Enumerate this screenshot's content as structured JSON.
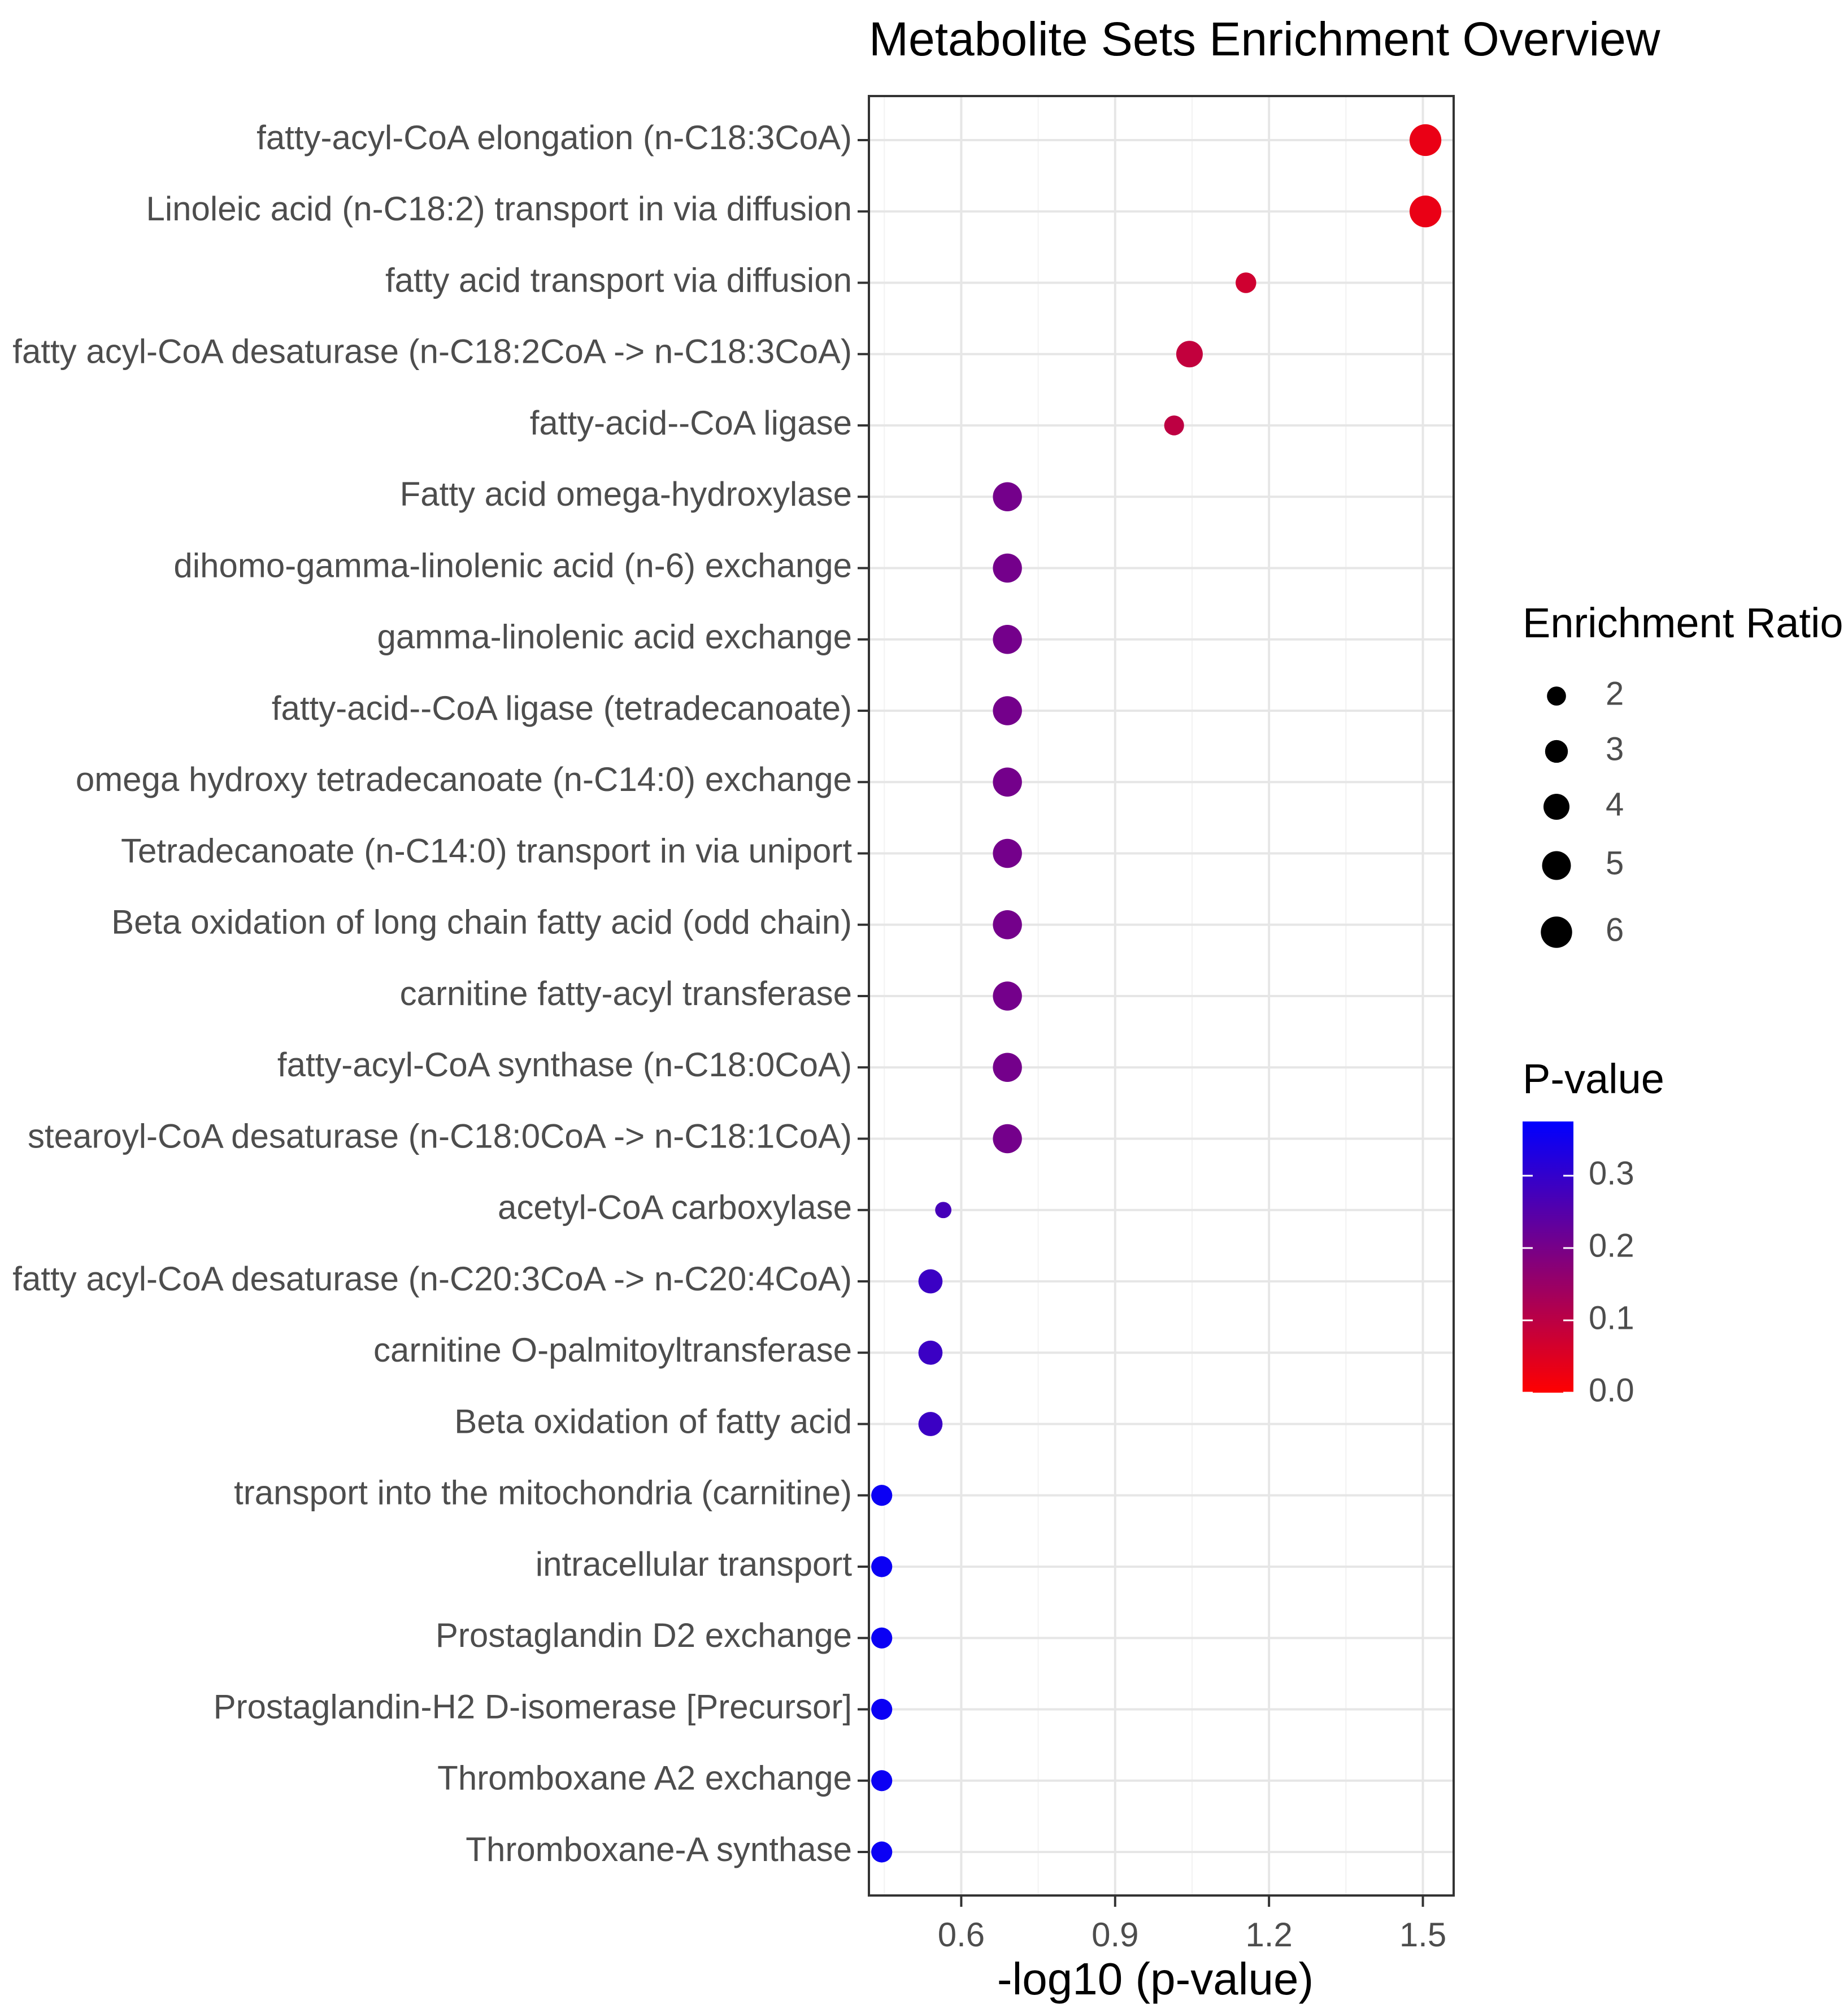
{
  "chart_data": {
    "type": "scatter",
    "title": "Metabolite Sets Enrichment Overview",
    "xlabel": "-log10 (p-value)",
    "ylabel": "",
    "xlim": [
      0.42,
      1.56
    ],
    "xticks": [
      0.6,
      0.9,
      1.2,
      1.5
    ],
    "xtick_labels": [
      "0.6",
      "0.9",
      "1.2",
      "1.5"
    ],
    "grid": true,
    "legend_position": "right",
    "points": [
      {
        "name": "fatty-acyl-CoA elongation (n-C18:3CoA)",
        "neg_log10_p": 1.505,
        "p_value": 0.031,
        "enrichment_ratio": 6.2
      },
      {
        "name": "Linoleic acid (n-C18:2) transport in via diffusion",
        "neg_log10_p": 1.505,
        "p_value": 0.031,
        "enrichment_ratio": 6.2
      },
      {
        "name": "fatty acid transport via diffusion",
        "neg_log10_p": 1.155,
        "p_value": 0.07,
        "enrichment_ratio": 2.4
      },
      {
        "name": "fatty acyl-CoA desaturase (n-C18:2CoA -> n-C18:3CoA)",
        "neg_log10_p": 1.045,
        "p_value": 0.09,
        "enrichment_ratio": 4.2
      },
      {
        "name": "fatty-acid--CoA ligase",
        "neg_log10_p": 1.015,
        "p_value": 0.097,
        "enrichment_ratio": 2.2
      },
      {
        "name": "Fatty acid omega-hydroxylase",
        "neg_log10_p": 0.69,
        "p_value": 0.204,
        "enrichment_ratio": 5.1
      },
      {
        "name": "dihomo-gamma-linolenic acid (n-6) exchange",
        "neg_log10_p": 0.69,
        "p_value": 0.204,
        "enrichment_ratio": 5.1
      },
      {
        "name": "gamma-linolenic acid exchange",
        "neg_log10_p": 0.69,
        "p_value": 0.204,
        "enrichment_ratio": 5.1
      },
      {
        "name": "fatty-acid--CoA ligase (tetradecanoate)",
        "neg_log10_p": 0.69,
        "p_value": 0.204,
        "enrichment_ratio": 5.1
      },
      {
        "name": "omega hydroxy tetradecanoate (n-C14:0) exchange",
        "neg_log10_p": 0.69,
        "p_value": 0.204,
        "enrichment_ratio": 5.1
      },
      {
        "name": "Tetradecanoate (n-C14:0) transport in via uniport",
        "neg_log10_p": 0.69,
        "p_value": 0.204,
        "enrichment_ratio": 5.1
      },
      {
        "name": "Beta oxidation of long chain fatty acid (odd chain)",
        "neg_log10_p": 0.69,
        "p_value": 0.204,
        "enrichment_ratio": 5.1
      },
      {
        "name": "carnitine fatty-acyl transferase",
        "neg_log10_p": 0.69,
        "p_value": 0.204,
        "enrichment_ratio": 5.1
      },
      {
        "name": "fatty-acyl-CoA synthase (n-C18:0CoA)",
        "neg_log10_p": 0.69,
        "p_value": 0.204,
        "enrichment_ratio": 5.1
      },
      {
        "name": "stearoyl-CoA desaturase (n-C18:0CoA -> n-C18:1CoA)",
        "neg_log10_p": 0.69,
        "p_value": 0.204,
        "enrichment_ratio": 5.1
      },
      {
        "name": "acetyl-CoA carboxylase",
        "neg_log10_p": 0.565,
        "p_value": 0.272,
        "enrichment_ratio": 1.4
      },
      {
        "name": "fatty acyl-CoA desaturase (n-C20:3CoA -> n-C20:4CoA)",
        "neg_log10_p": 0.54,
        "p_value": 0.288,
        "enrichment_ratio": 3.4
      },
      {
        "name": "carnitine O-palmitoyltransferase",
        "neg_log10_p": 0.54,
        "p_value": 0.288,
        "enrichment_ratio": 3.4
      },
      {
        "name": "Beta oxidation of fatty acid",
        "neg_log10_p": 0.54,
        "p_value": 0.288,
        "enrichment_ratio": 3.4
      },
      {
        "name": "transport into the mitochondria (carnitine)",
        "neg_log10_p": 0.445,
        "p_value": 0.359,
        "enrichment_ratio": 2.5
      },
      {
        "name": "intracellular transport",
        "neg_log10_p": 0.445,
        "p_value": 0.359,
        "enrichment_ratio": 2.5
      },
      {
        "name": "Prostaglandin D2 exchange",
        "neg_log10_p": 0.445,
        "p_value": 0.359,
        "enrichment_ratio": 2.5
      },
      {
        "name": "Prostaglandin-H2 D-isomerase [Precursor]",
        "neg_log10_p": 0.445,
        "p_value": 0.359,
        "enrichment_ratio": 2.5
      },
      {
        "name": "Thromboxane A2 exchange",
        "neg_log10_p": 0.445,
        "p_value": 0.359,
        "enrichment_ratio": 2.5
      },
      {
        "name": "Thromboxane-A synthase",
        "neg_log10_p": 0.445,
        "p_value": 0.359,
        "enrichment_ratio": 2.5
      }
    ],
    "size_legend": {
      "title": "Enrichment Ratio",
      "values": [
        2,
        3,
        4,
        5,
        6
      ],
      "labels": [
        "2",
        "3",
        "4",
        "5",
        "6"
      ]
    },
    "color_legend": {
      "title": "P-value",
      "range": [
        0.0,
        0.375
      ],
      "low_color": "#ff0000",
      "high_color": "#0000ff",
      "ticks": [
        0.0,
        0.1,
        0.2,
        0.3
      ],
      "tick_labels": [
        "0.0",
        "0.1",
        "0.2",
        "0.3"
      ]
    }
  }
}
